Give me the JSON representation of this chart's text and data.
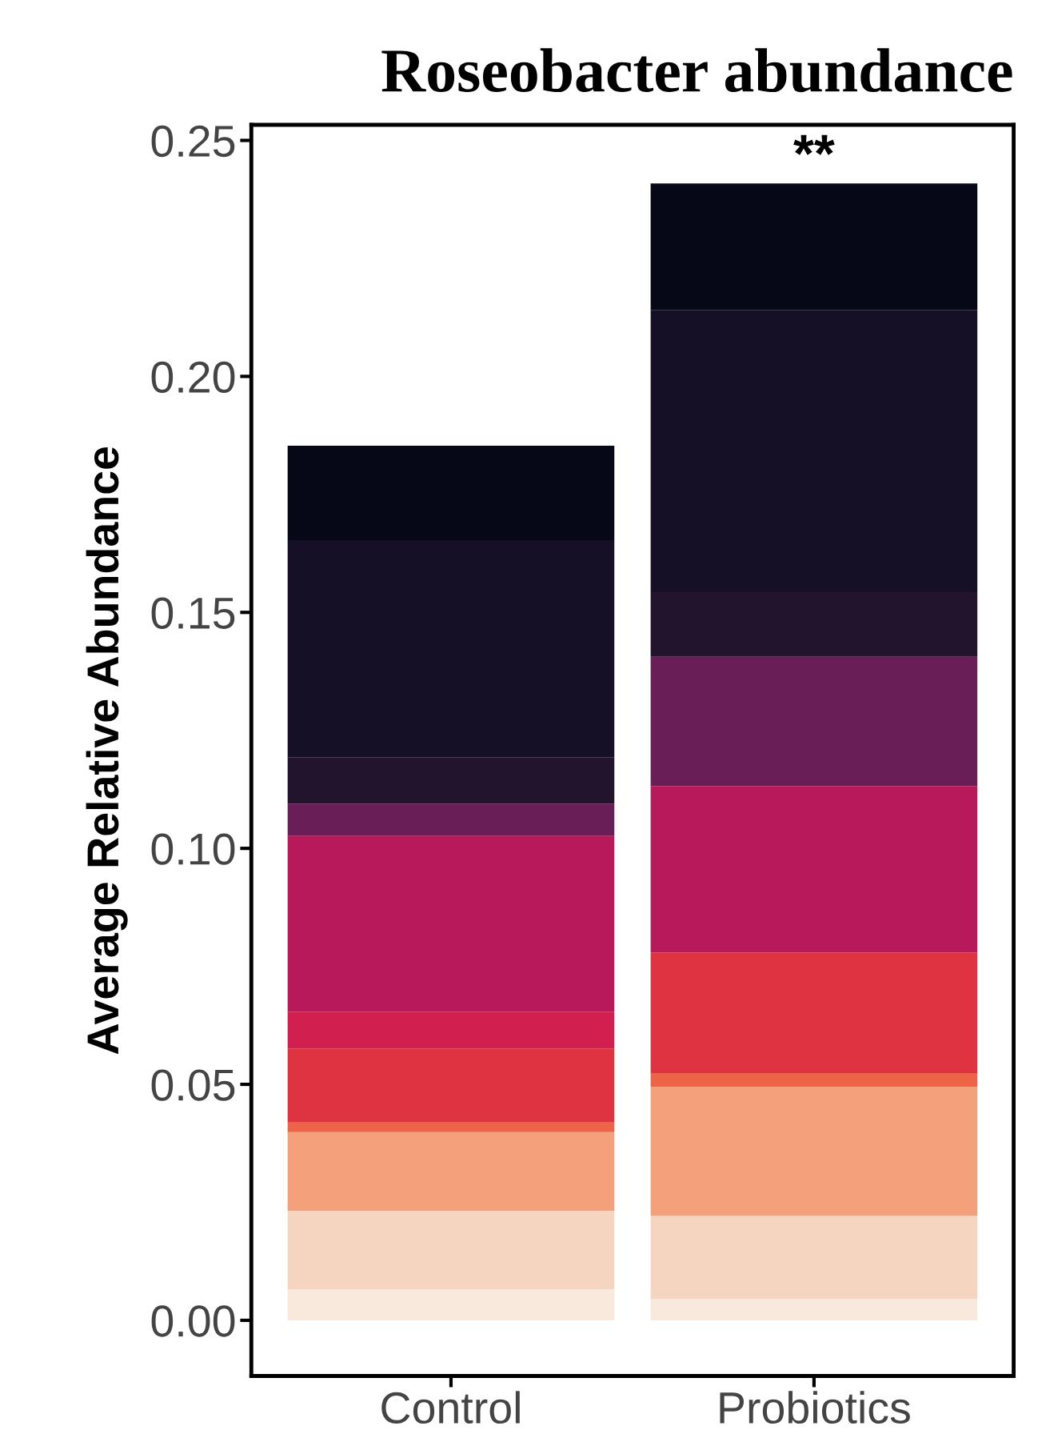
{
  "chart_data": {
    "type": "bar",
    "title": "Roseobacter abundance",
    "ylabel": "Average Relative Abundance",
    "categories": [
      "Control",
      "Probiotics"
    ],
    "stacked": true,
    "series": [
      {
        "color": "#f9e8dc",
        "values": [
          0.0065,
          0.0045
        ]
      },
      {
        "color": "#f6d5c0",
        "values": [
          0.0167,
          0.0176
        ]
      },
      {
        "color": "#f4a07a",
        "values": [
          0.0167,
          0.0274
        ]
      },
      {
        "color": "#ee6347",
        "values": [
          0.002,
          0.0029
        ]
      },
      {
        "color": "#e03341",
        "values": [
          0.0157,
          0.0255
        ]
      },
      {
        "color": "#d11f4f",
        "values": [
          0.0078,
          0
        ]
      },
      {
        "color": "#b8195a",
        "values": [
          0.0372,
          0.0353
        ]
      },
      {
        "color": "#6a1e58",
        "values": [
          0.0069,
          0.0274
        ]
      },
      {
        "color": "#22142c",
        "values": [
          0.0098,
          0.0137
        ]
      },
      {
        "color": "#161027",
        "values": [
          0.046,
          0.0598
        ]
      },
      {
        "color": "#060818",
        "values": [
          0.02,
          0.0268
        ]
      }
    ],
    "annotations": [
      {
        "text": "**",
        "x": "Probiotics",
        "y": 0.241
      }
    ],
    "ylim": [
      -0.0118,
      0.2533
    ],
    "yticks": [
      {
        "value": 0,
        "label": "0.00"
      },
      {
        "value": 0.05,
        "label": "0.05"
      },
      {
        "value": 0.1,
        "label": "0.10"
      },
      {
        "value": 0.15,
        "label": "0.15"
      },
      {
        "value": 0.2,
        "label": "0.20"
      },
      {
        "value": 0.25,
        "label": "0.25"
      }
    ],
    "grid": false,
    "legend": false
  }
}
